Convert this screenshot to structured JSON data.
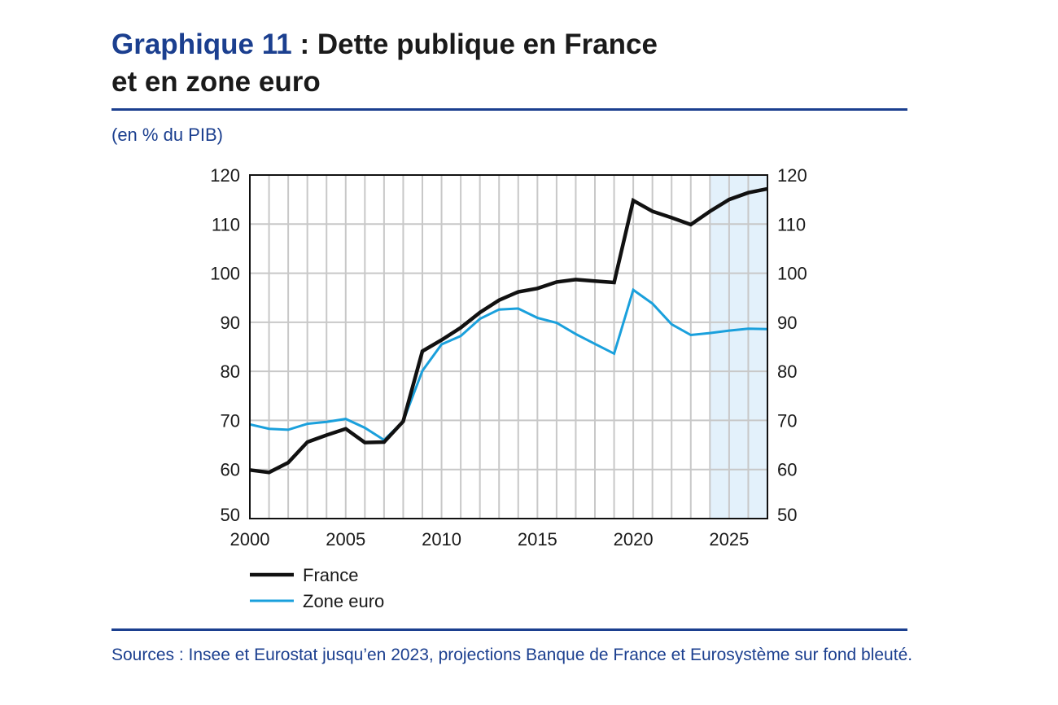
{
  "header": {
    "title_lead": "Graphique 11",
    "title_rest": " : Dette publique en France",
    "title_line2": "et en zone euro"
  },
  "unit_label": "(en % du PIB)",
  "sources": "Sources : Insee et Eurostat jusqu’en 2023, projections Banque de France et Eurosystème sur fond bleuté.",
  "colors": {
    "brand": "#1b3f8f",
    "france": "#111111",
    "zone_euro": "#1aa0dc",
    "projection_bg": "#e3f1fb",
    "grid": "#c8c8c8"
  },
  "chart_data": {
    "type": "line",
    "title": "Dette publique en France et en zone euro",
    "ylabel": "en % du PIB",
    "xlim": [
      2000,
      2027
    ],
    "ylim": [
      50,
      120
    ],
    "x_ticks": [
      2000,
      2005,
      2010,
      2015,
      2020,
      2025
    ],
    "y_ticks": [
      50,
      60,
      70,
      80,
      90,
      100,
      110,
      120
    ],
    "grid": true,
    "projection_shading": {
      "from": 2024,
      "to": 2027,
      "label": "projections Banque de France et Eurosystème"
    },
    "x": [
      2000,
      2001,
      2002,
      2003,
      2004,
      2005,
      2006,
      2007,
      2008,
      2009,
      2010,
      2011,
      2012,
      2013,
      2014,
      2015,
      2016,
      2017,
      2018,
      2019,
      2020,
      2021,
      2022,
      2023,
      2024,
      2025,
      2026,
      2027
    ],
    "series": [
      {
        "name": "France",
        "values": [
          59.9,
          59.4,
          61.4,
          65.6,
          67.0,
          68.3,
          65.5,
          65.6,
          69.8,
          84.1,
          86.4,
          88.9,
          92.0,
          94.5,
          96.2,
          96.9,
          98.2,
          98.7,
          98.4,
          98.1,
          114.8,
          112.6,
          111.3,
          109.9,
          112.6,
          115.0,
          116.4,
          117.2
        ]
      },
      {
        "name": "Zone euro",
        "values": [
          69.2,
          68.3,
          68.1,
          69.3,
          69.7,
          70.3,
          68.5,
          66.0,
          69.8,
          80.1,
          85.5,
          87.2,
          90.7,
          92.6,
          92.8,
          90.9,
          89.9,
          87.6,
          85.6,
          83.6,
          96.6,
          93.8,
          89.6,
          87.4,
          87.8,
          88.3,
          88.7,
          88.6
        ]
      }
    ],
    "legend": [
      "France",
      "Zone euro"
    ],
    "legend_position": "bottom-left"
  }
}
